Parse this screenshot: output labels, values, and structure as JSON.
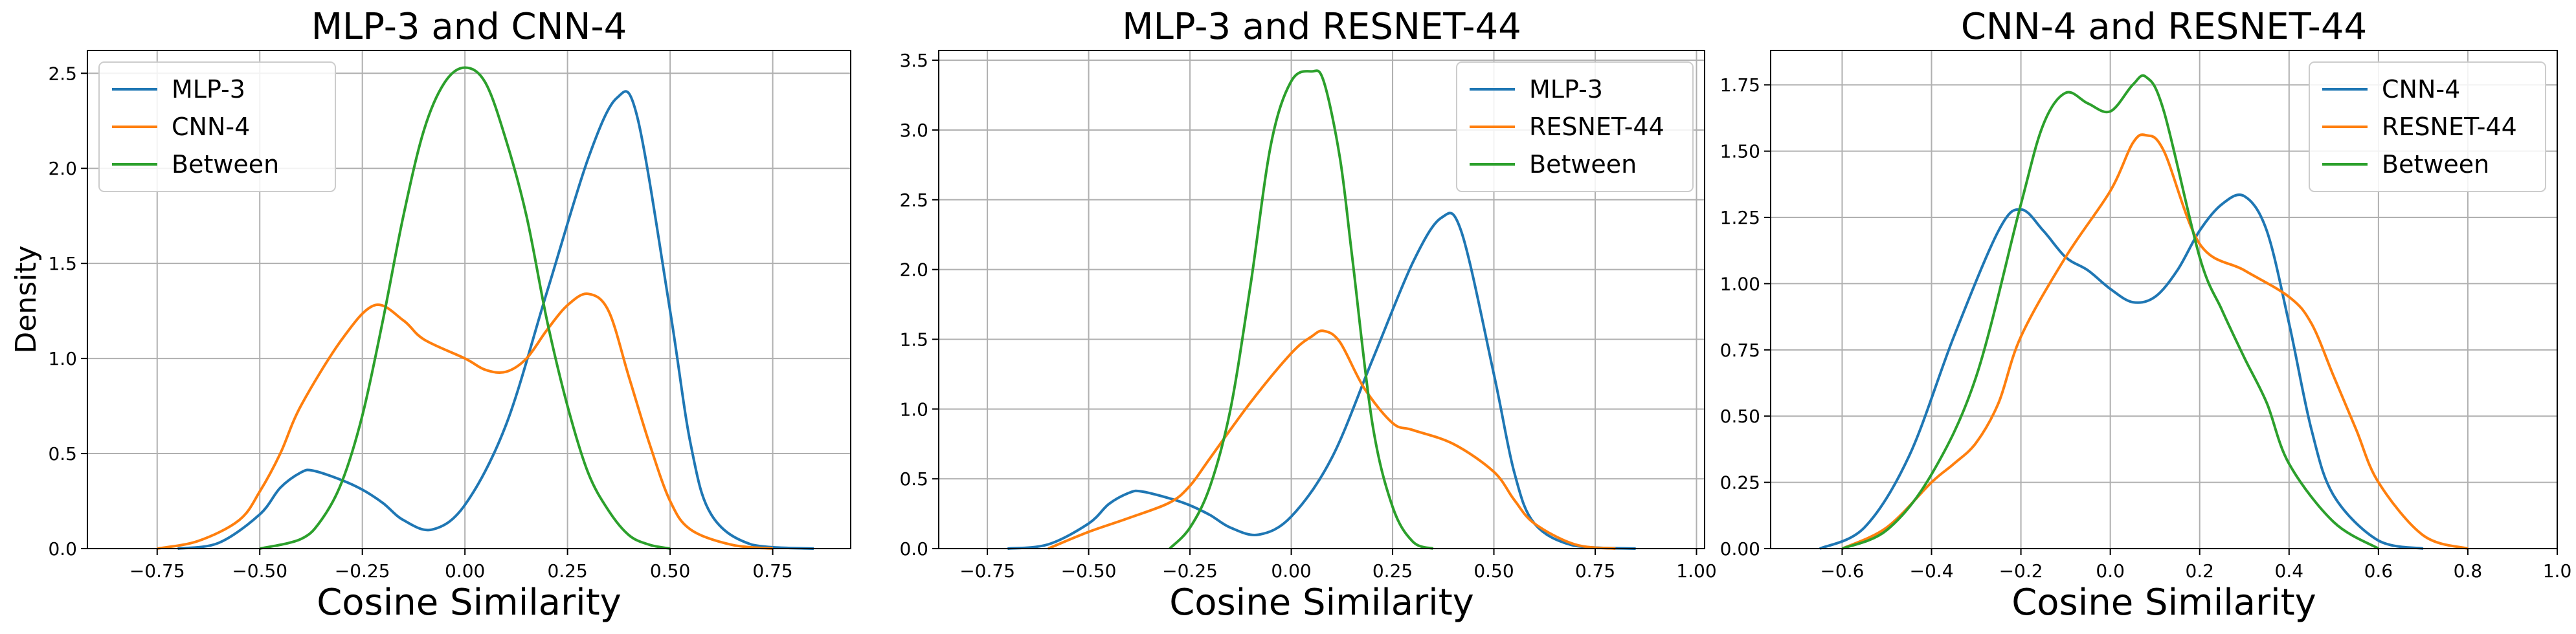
{
  "chart_data": [
    {
      "type": "line",
      "title": "MLP-3 and CNN-4",
      "xlabel": "Cosine Similarity",
      "ylabel": "Density",
      "xlim": [
        -0.92,
        0.94
      ],
      "ylim": [
        0,
        2.62
      ],
      "xticks": [
        -0.75,
        -0.5,
        -0.25,
        0.0,
        0.25,
        0.5,
        0.75
      ],
      "xtick_labels": [
        "−0.75",
        "−0.50",
        "−0.25",
        "0.00",
        "0.25",
        "0.50",
        "0.75"
      ],
      "yticks": [
        0,
        0.5,
        1.0,
        1.5,
        2.0,
        2.5
      ],
      "ytick_labels": [
        "0.0",
        "0.5",
        "1.0",
        "1.5",
        "2.0",
        "2.5"
      ],
      "grid": true,
      "legend_position": "top-left",
      "series": [
        {
          "name": "MLP-3",
          "color": "#1f77b4",
          "x": [
            -0.7,
            -0.6,
            -0.5,
            -0.45,
            -0.4,
            -0.37,
            -0.3,
            -0.25,
            -0.2,
            -0.15,
            -0.08,
            0.0,
            0.1,
            0.2,
            0.3,
            0.37,
            0.42,
            0.5,
            0.55,
            0.6,
            0.7,
            0.85
          ],
          "y": [
            0.0,
            0.03,
            0.18,
            0.32,
            0.4,
            0.41,
            0.36,
            0.31,
            0.24,
            0.15,
            0.1,
            0.23,
            0.65,
            1.35,
            2.05,
            2.37,
            2.27,
            1.25,
            0.55,
            0.18,
            0.02,
            0.0
          ]
        },
        {
          "name": "CNN-4",
          "color": "#ff7f0e",
          "x": [
            -0.75,
            -0.65,
            -0.55,
            -0.5,
            -0.45,
            -0.4,
            -0.3,
            -0.22,
            -0.15,
            -0.1,
            0.0,
            0.05,
            0.1,
            0.15,
            0.2,
            0.25,
            0.3,
            0.35,
            0.4,
            0.45,
            0.5,
            0.55,
            0.65,
            0.75
          ],
          "y": [
            0.0,
            0.04,
            0.15,
            0.3,
            0.5,
            0.75,
            1.1,
            1.28,
            1.2,
            1.1,
            1.0,
            0.94,
            0.93,
            1.0,
            1.15,
            1.28,
            1.34,
            1.25,
            0.9,
            0.55,
            0.25,
            0.1,
            0.02,
            0.0
          ]
        },
        {
          "name": "Between",
          "color": "#2ca02c",
          "x": [
            -0.5,
            -0.4,
            -0.35,
            -0.3,
            -0.25,
            -0.2,
            -0.15,
            -0.1,
            -0.05,
            0.0,
            0.05,
            0.1,
            0.15,
            0.2,
            0.25,
            0.3,
            0.35,
            0.4,
            0.45,
            0.5
          ],
          "y": [
            0.0,
            0.05,
            0.15,
            0.35,
            0.7,
            1.2,
            1.75,
            2.2,
            2.45,
            2.53,
            2.45,
            2.15,
            1.75,
            1.2,
            0.75,
            0.4,
            0.2,
            0.07,
            0.02,
            0.0
          ]
        }
      ]
    },
    {
      "type": "line",
      "title": "MLP-3 and RESNET-44",
      "xlabel": "Cosine Similarity",
      "ylabel": "",
      "xlim": [
        -0.87,
        1.02
      ],
      "ylim": [
        0,
        3.57
      ],
      "xticks": [
        -0.75,
        -0.5,
        -0.25,
        0.0,
        0.25,
        0.5,
        0.75,
        1.0
      ],
      "xtick_labels": [
        "−0.75",
        "−0.50",
        "−0.25",
        "0.00",
        "0.25",
        "0.50",
        "0.75",
        "1.00"
      ],
      "yticks": [
        0,
        0.5,
        1.0,
        1.5,
        2.0,
        2.5,
        3.0,
        3.5
      ],
      "ytick_labels": [
        "0.0",
        "0.5",
        "1.0",
        "1.5",
        "2.0",
        "2.5",
        "3.0",
        "3.5"
      ],
      "grid": true,
      "legend_position": "top-right",
      "series": [
        {
          "name": "MLP-3",
          "color": "#1f77b4",
          "x": [
            -0.7,
            -0.6,
            -0.5,
            -0.45,
            -0.4,
            -0.37,
            -0.3,
            -0.25,
            -0.2,
            -0.15,
            -0.08,
            0.0,
            0.1,
            0.2,
            0.3,
            0.37,
            0.42,
            0.5,
            0.55,
            0.6,
            0.7,
            0.85
          ],
          "y": [
            0.0,
            0.03,
            0.18,
            0.32,
            0.4,
            0.41,
            0.36,
            0.31,
            0.24,
            0.15,
            0.1,
            0.23,
            0.65,
            1.35,
            2.05,
            2.37,
            2.27,
            1.25,
            0.55,
            0.18,
            0.02,
            0.0
          ]
        },
        {
          "name": "RESNET-44",
          "color": "#ff7f0e",
          "x": [
            -0.6,
            -0.5,
            -0.4,
            -0.3,
            -0.25,
            -0.2,
            -0.1,
            0.0,
            0.05,
            0.08,
            0.12,
            0.18,
            0.25,
            0.3,
            0.4,
            0.5,
            0.55,
            0.6,
            0.7,
            0.8
          ],
          "y": [
            0.0,
            0.12,
            0.22,
            0.33,
            0.45,
            0.65,
            1.05,
            1.4,
            1.52,
            1.56,
            1.48,
            1.15,
            0.9,
            0.85,
            0.75,
            0.55,
            0.35,
            0.18,
            0.03,
            0.0
          ]
        },
        {
          "name": "Between",
          "color": "#2ca02c",
          "x": [
            -0.3,
            -0.25,
            -0.2,
            -0.15,
            -0.1,
            -0.05,
            0.0,
            0.05,
            0.08,
            0.12,
            0.15,
            0.2,
            0.25,
            0.3,
            0.35
          ],
          "y": [
            0.0,
            0.15,
            0.45,
            1.0,
            1.9,
            2.9,
            3.35,
            3.42,
            3.35,
            2.8,
            2.1,
            0.9,
            0.3,
            0.05,
            0.0
          ]
        }
      ]
    },
    {
      "type": "line",
      "title": "CNN-4 and RESNET-44",
      "xlabel": "Cosine Similarity",
      "ylabel": "",
      "xlim": [
        -0.76,
        1.0
      ],
      "ylim": [
        0,
        1.88
      ],
      "xticks": [
        -0.6,
        -0.4,
        -0.2,
        0.0,
        0.2,
        0.4,
        0.6,
        0.8,
        1.0
      ],
      "xtick_labels": [
        "−0.6",
        "−0.4",
        "−0.2",
        "0.0",
        "0.2",
        "0.4",
        "0.6",
        "0.8",
        "1.0"
      ],
      "yticks": [
        0,
        0.25,
        0.5,
        0.75,
        1.0,
        1.25,
        1.5,
        1.75
      ],
      "ytick_labels": [
        "0.00",
        "0.25",
        "0.50",
        "0.75",
        "1.00",
        "1.25",
        "1.50",
        "1.75"
      ],
      "grid": true,
      "legend_position": "top-right",
      "series": [
        {
          "name": "CNN-4",
          "color": "#1f77b4",
          "x": [
            -0.65,
            -0.55,
            -0.45,
            -0.35,
            -0.25,
            -0.2,
            -0.15,
            -0.1,
            -0.05,
            0.0,
            0.05,
            0.1,
            0.15,
            0.2,
            0.25,
            0.3,
            0.35,
            0.4,
            0.45,
            0.5,
            0.6,
            0.7
          ],
          "y": [
            0.0,
            0.08,
            0.35,
            0.8,
            1.2,
            1.28,
            1.2,
            1.1,
            1.05,
            0.98,
            0.93,
            0.95,
            1.05,
            1.2,
            1.3,
            1.33,
            1.2,
            0.85,
            0.45,
            0.2,
            0.03,
            0.0
          ]
        },
        {
          "name": "RESNET-44",
          "color": "#ff7f0e",
          "x": [
            -0.6,
            -0.5,
            -0.4,
            -0.35,
            -0.3,
            -0.25,
            -0.2,
            -0.1,
            0.0,
            0.05,
            0.08,
            0.12,
            0.2,
            0.3,
            0.4,
            0.45,
            0.5,
            0.55,
            0.6,
            0.7,
            0.8
          ],
          "y": [
            0.0,
            0.08,
            0.25,
            0.32,
            0.4,
            0.55,
            0.8,
            1.1,
            1.35,
            1.53,
            1.56,
            1.5,
            1.15,
            1.05,
            0.95,
            0.85,
            0.65,
            0.45,
            0.25,
            0.05,
            0.0
          ]
        },
        {
          "name": "Between",
          "color": "#2ca02c",
          "x": [
            -0.6,
            -0.5,
            -0.4,
            -0.3,
            -0.2,
            -0.15,
            -0.1,
            -0.05,
            0.0,
            0.05,
            0.08,
            0.12,
            0.2,
            0.25,
            0.3,
            0.35,
            0.4,
            0.5,
            0.6
          ],
          "y": [
            0.0,
            0.07,
            0.28,
            0.65,
            1.3,
            1.6,
            1.72,
            1.68,
            1.65,
            1.75,
            1.78,
            1.65,
            1.1,
            0.9,
            0.72,
            0.55,
            0.32,
            0.1,
            0.0
          ]
        }
      ]
    }
  ]
}
